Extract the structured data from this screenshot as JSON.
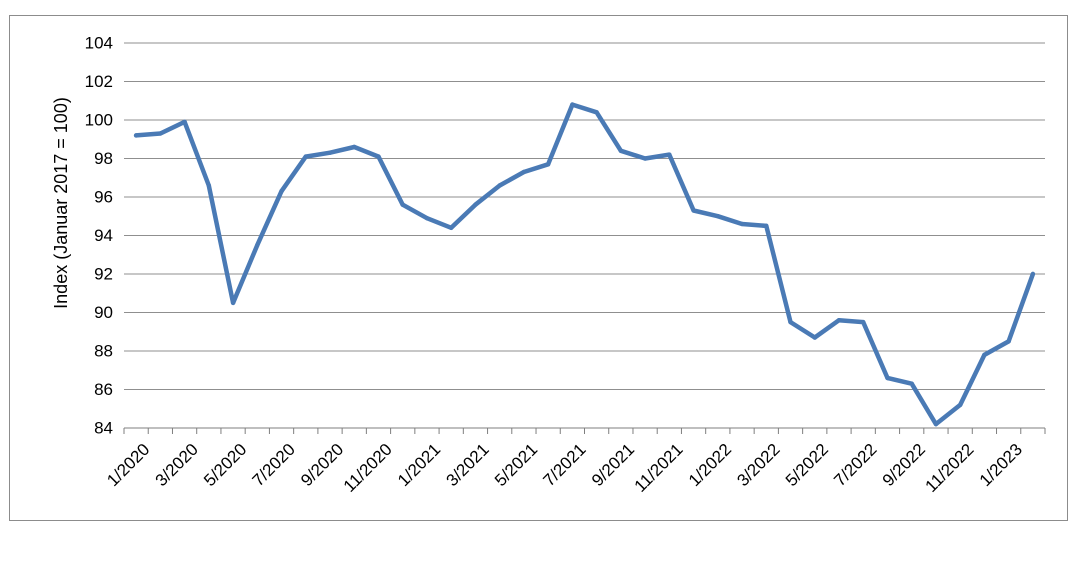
{
  "chart_data": {
    "type": "line",
    "title": "",
    "xlabel": "",
    "ylabel": "Index (Januar 2017 = 100)",
    "ylim": [
      84,
      104
    ],
    "yticks": [
      84,
      86,
      88,
      90,
      92,
      94,
      96,
      98,
      100,
      102,
      104
    ],
    "grid": "horizontal",
    "legend": "none",
    "line_color": "#4a7ab5",
    "x_tick_labels": [
      "1/2020",
      "3/2020",
      "5/2020",
      "7/2020",
      "9/2020",
      "11/2020",
      "1/2021",
      "3/2021",
      "5/2021",
      "7/2021",
      "9/2021",
      "11/2021",
      "1/2022",
      "3/2022",
      "5/2022",
      "7/2022",
      "9/2022",
      "11/2022",
      "1/2023"
    ],
    "series": [
      {
        "x": [
          "1/2020",
          "2/2020",
          "3/2020",
          "4/2020",
          "5/2020",
          "6/2020",
          "7/2020",
          "8/2020",
          "9/2020",
          "10/2020",
          "11/2020",
          "12/2020",
          "1/2021",
          "2/2021",
          "3/2021",
          "4/2021",
          "5/2021",
          "6/2021",
          "7/2021",
          "8/2021",
          "9/2021",
          "10/2021",
          "11/2021",
          "12/2021",
          "1/2022",
          "2/2022",
          "3/2022",
          "4/2022",
          "5/2022",
          "6/2022",
          "7/2022",
          "8/2022",
          "9/2022",
          "10/2022",
          "11/2022",
          "12/2022",
          "1/2023",
          "2/2023"
        ],
        "values": [
          99.2,
          99.3,
          99.9,
          96.6,
          90.5,
          93.5,
          96.3,
          98.1,
          98.3,
          98.6,
          98.1,
          95.6,
          94.9,
          94.4,
          95.6,
          96.6,
          97.3,
          97.7,
          100.8,
          100.4,
          98.4,
          98.0,
          98.2,
          95.3,
          95.0,
          94.6,
          94.5,
          89.5,
          88.7,
          89.6,
          89.5,
          86.6,
          86.3,
          84.2,
          85.2,
          87.8,
          88.5,
          92.0
        ]
      }
    ]
  }
}
